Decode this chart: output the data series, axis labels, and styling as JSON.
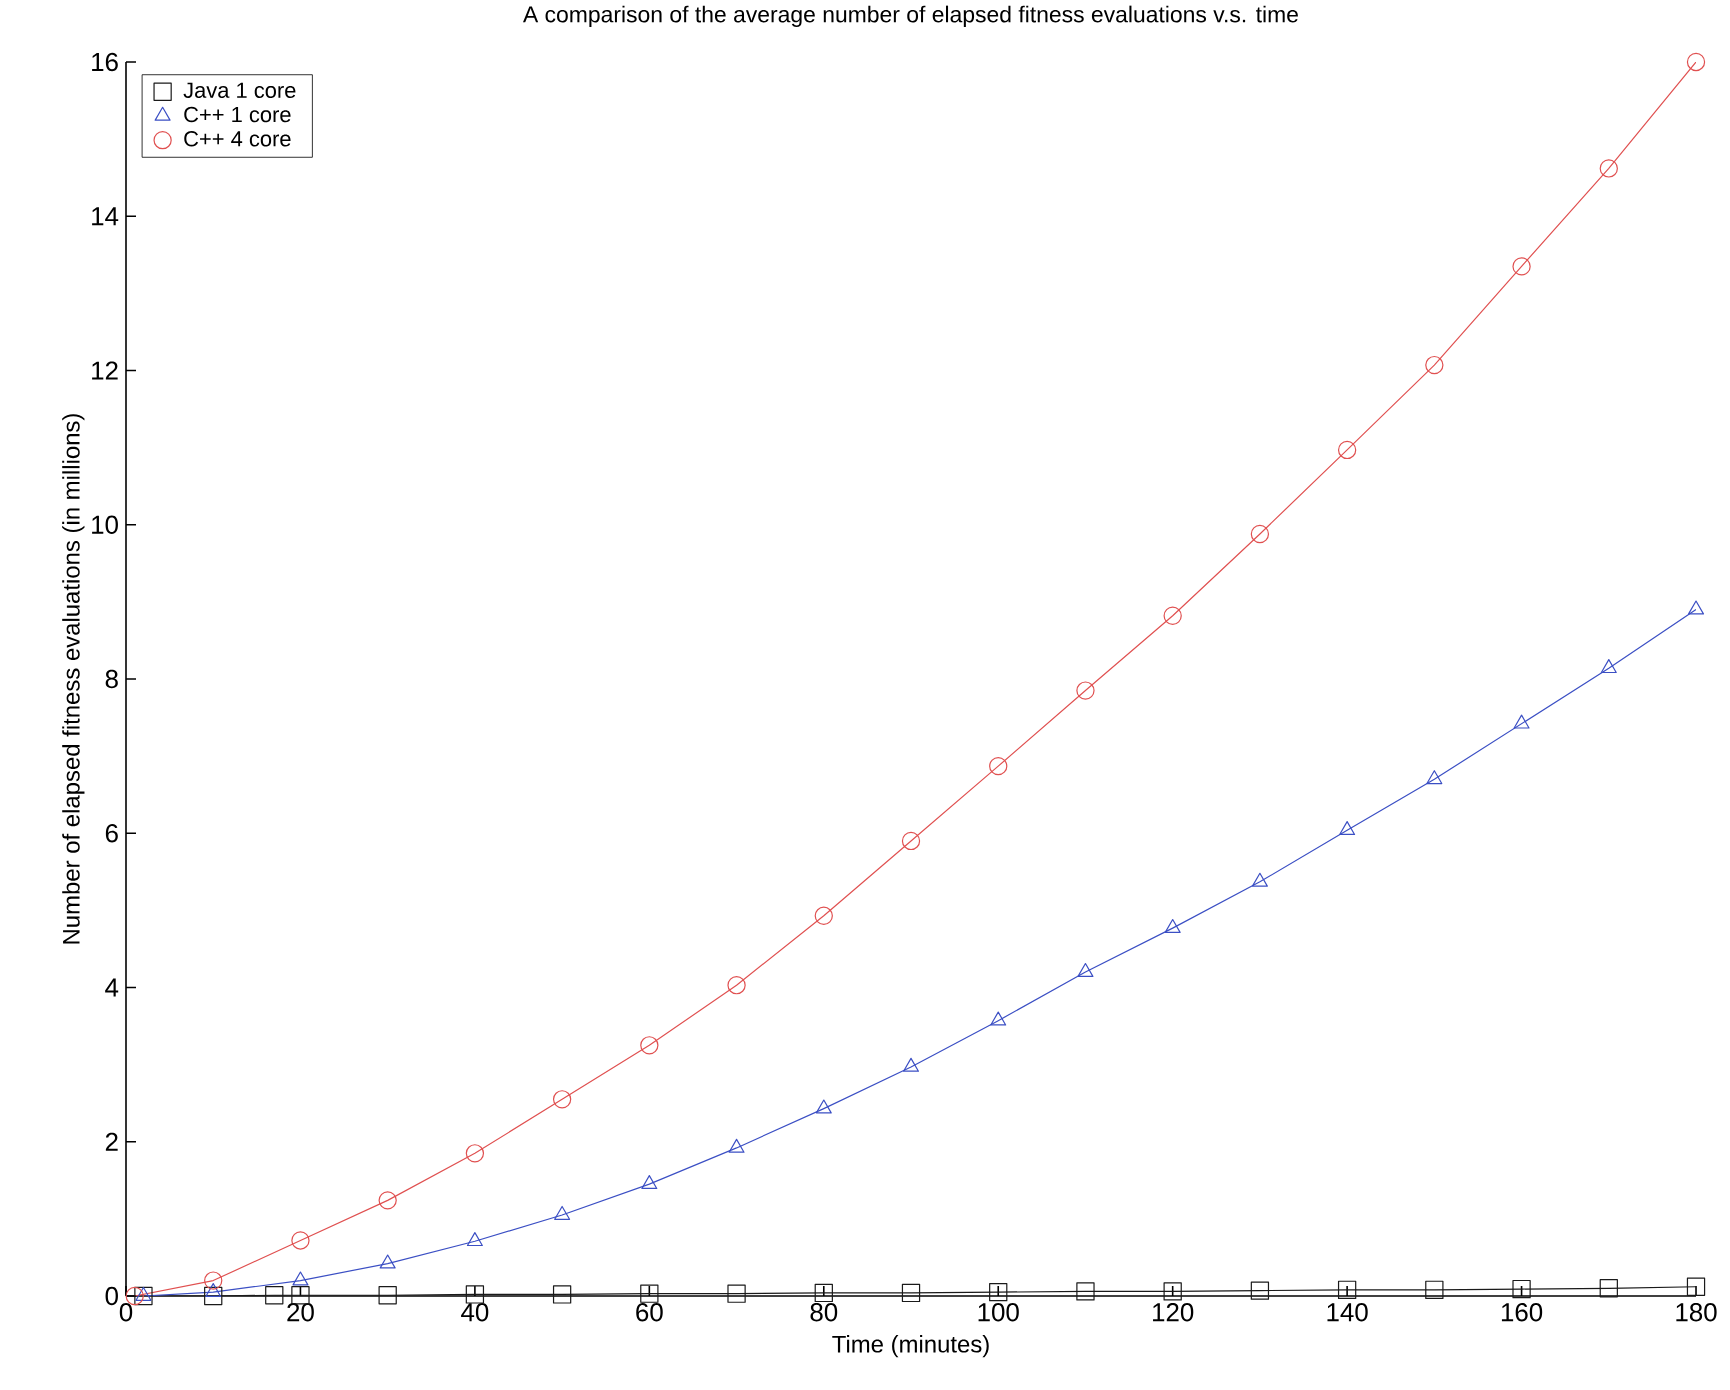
{
  "chart_data": {
    "type": "line",
    "title": "A comparison of the average number of elapsed fitness evaluations v.s. time",
    "xlabel": "Time (minutes)",
    "ylabel": "Number of elapsed fitness evaluations (in millions)",
    "xlim": [
      0,
      180
    ],
    "ylim": [
      0,
      16
    ],
    "xticks": [
      0,
      20,
      40,
      60,
      80,
      100,
      120,
      140,
      160,
      180
    ],
    "yticks": [
      0,
      2,
      4,
      6,
      8,
      10,
      12,
      14,
      16
    ],
    "grid": false,
    "legend": "top left",
    "series": [
      {
        "name": "Java 1 core",
        "color": "#1a1a1a",
        "marker": "square",
        "x": [
          2,
          10,
          17,
          20,
          30,
          40,
          50,
          60,
          70,
          80,
          90,
          100,
          110,
          120,
          130,
          140,
          150,
          160,
          170,
          180
        ],
        "values": [
          0,
          0,
          0.01,
          0.01,
          0.01,
          0.02,
          0.02,
          0.03,
          0.03,
          0.04,
          0.04,
          0.05,
          0.06,
          0.06,
          0.07,
          0.08,
          0.08,
          0.09,
          0.1,
          0.12
        ]
      },
      {
        "name": "C++ 1 core",
        "color": "#3b4fc4",
        "marker": "triangle",
        "x": [
          2,
          10,
          20,
          30,
          40,
          50,
          60,
          70,
          80,
          90,
          100,
          110,
          120,
          130,
          140,
          150,
          160,
          170,
          180
        ],
        "values": [
          0,
          0.05,
          0.2,
          0.42,
          0.71,
          1.05,
          1.45,
          1.92,
          2.43,
          2.97,
          3.57,
          4.2,
          4.77,
          5.37,
          6.04,
          6.7,
          7.42,
          8.14,
          8.9
        ]
      },
      {
        "name": "C++ 4 core",
        "color": "#e05050",
        "marker": "circle",
        "x": [
          1,
          10,
          20,
          30,
          40,
          50,
          60,
          70,
          80,
          90,
          100,
          110,
          120,
          130,
          140,
          150,
          160,
          170,
          180
        ],
        "values": [
          0,
          0.2,
          0.72,
          1.24,
          1.85,
          2.55,
          3.25,
          4.03,
          4.93,
          5.9,
          6.87,
          7.85,
          8.82,
          9.88,
          10.97,
          12.07,
          13.35,
          14.62,
          16
        ]
      }
    ]
  }
}
